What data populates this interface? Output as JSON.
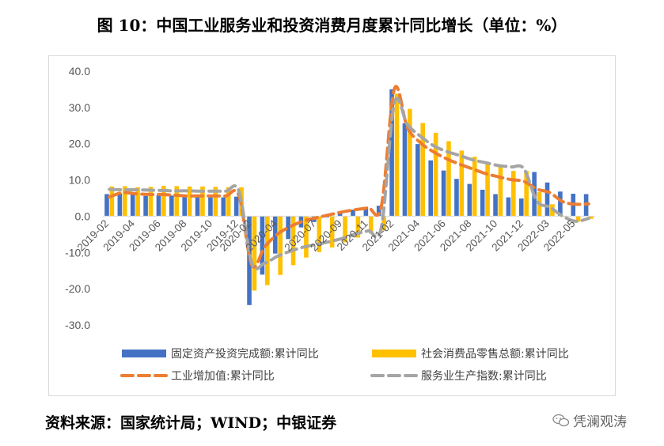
{
  "figure_title": "图 10：中国工业服务业和投资消费月度累计同比增长（单位：%）",
  "source": "资料来源：国家统计局；WIND；中银证券",
  "watermark": "凭澜观涛",
  "chart_data": {
    "type": "bar",
    "title": "图 10：中国工业服务业和投资消费月度累计同比增长（单位：%）",
    "xlabel": "",
    "ylabel": "",
    "ylim": [
      -30,
      40
    ],
    "yticks": [
      "40.0",
      "30.0",
      "20.0",
      "10.0",
      "0.0",
      "-10.0",
      "-20.0",
      "-30.0"
    ],
    "grid": false,
    "legend_position": "bottom",
    "categories": [
      "2019-02",
      "2019-03",
      "2019-04",
      "2019-05",
      "2019-06",
      "2019-07",
      "2019-08",
      "2019-09",
      "2019-10",
      "2019-11",
      "2019-12",
      "2020-02",
      "2020-03",
      "2020-04",
      "2020-05",
      "2020-06",
      "2020-07",
      "2020-08",
      "2020-09",
      "2020-10",
      "2020-11",
      "2020-12",
      "2021-02",
      "2021-03",
      "2021-04",
      "2021-05",
      "2021-06",
      "2021-07",
      "2021-08",
      "2021-09",
      "2021-10",
      "2021-11",
      "2021-12",
      "2022-02",
      "2022-03",
      "2022-04",
      "2022-05",
      "2022-06"
    ],
    "tick_labels": [
      "2019-02",
      "2019-04",
      "2019-06",
      "2019-08",
      "2019-10",
      "2019-12",
      "2020-02",
      "2020-04",
      "2020-07",
      "2020-09",
      "2020-11",
      "2021-02",
      "2021-04",
      "2021-06",
      "2021-08",
      "2021-10",
      "2021-12",
      "2022-03",
      "2022-05"
    ],
    "series": [
      {
        "name": "固定资产投资完成额:累计同比",
        "kind": "bar",
        "color": "#4472c4",
        "values": [
          6.1,
          6.3,
          6.1,
          5.6,
          5.8,
          5.7,
          5.5,
          5.4,
          5.2,
          5.2,
          5.4,
          -24.5,
          -16.1,
          -10.3,
          -6.3,
          -3.1,
          -1.6,
          -0.3,
          0.8,
          1.8,
          2.6,
          2.9,
          35.0,
          25.6,
          19.9,
          15.4,
          12.6,
          10.3,
          8.9,
          7.3,
          6.1,
          5.2,
          4.9,
          12.2,
          9.3,
          6.8,
          6.2,
          6.1
        ]
      },
      {
        "name": "社会消费品零售总额:累计同比",
        "kind": "bar",
        "color": "#ffc000",
        "values": [
          8.2,
          8.3,
          8.0,
          8.1,
          8.4,
          8.3,
          8.2,
          8.2,
          8.1,
          8.0,
          8.0,
          -20.5,
          -19.0,
          -16.2,
          -13.5,
          -11.4,
          -9.9,
          -8.6,
          -7.2,
          -5.9,
          -4.8,
          -3.9,
          33.8,
          29.6,
          25.7,
          23.0,
          20.7,
          18.1,
          16.4,
          14.6,
          13.7,
          12.5,
          12.5,
          6.7,
          3.3,
          -0.2,
          -1.5,
          -0.7
        ]
      },
      {
        "name": "工业增加值:累计同比",
        "kind": "line",
        "color": "#ed7d31",
        "values": [
          5.3,
          6.5,
          6.2,
          6.0,
          6.0,
          5.8,
          5.6,
          5.6,
          5.6,
          5.6,
          5.7,
          -13.5,
          -8.4,
          -4.9,
          -2.8,
          -1.3,
          -0.4,
          0.4,
          1.2,
          1.8,
          2.3,
          2.8,
          35.1,
          24.5,
          20.3,
          17.8,
          15.9,
          14.4,
          13.1,
          11.8,
          10.9,
          10.1,
          9.6,
          7.5,
          6.5,
          4.0,
          3.3,
          3.4
        ]
      },
      {
        "name": "服务业生产指数:累计同比",
        "kind": "line",
        "color": "#a5a5a5",
        "values": [
          7.4,
          7.3,
          7.3,
          7.2,
          7.1,
          7.0,
          7.0,
          6.9,
          6.9,
          6.9,
          6.9,
          -13.0,
          -12.9,
          -11.0,
          -9.6,
          -8.5,
          -7.8,
          -7.0,
          -6.1,
          -4.9,
          -4.0,
          -3.0,
          31.2,
          25.3,
          22.1,
          19.5,
          17.9,
          16.8,
          15.6,
          14.8,
          14.0,
          13.6,
          13.1,
          4.2,
          2.5,
          0.0,
          -1.4,
          -0.6
        ]
      }
    ]
  }
}
